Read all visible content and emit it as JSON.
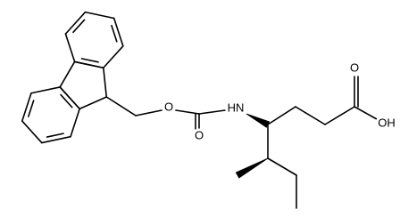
{
  "atoms": [
    {
      "label": "O"
    },
    {
      "label": "O"
    },
    {
      "label": "HN"
    },
    {
      "label": "O"
    },
    {
      "label": "OH"
    }
  ]
}
